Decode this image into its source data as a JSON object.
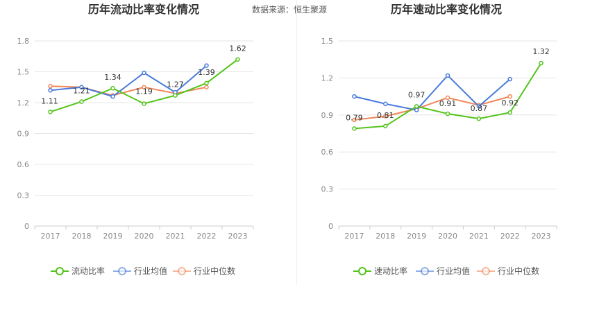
{
  "source_text": "数据来源：恒生聚源",
  "colors": {
    "main": "#52c41a",
    "avg": "#4a7bdc",
    "median": "#f0885a",
    "grid": "#e6e6e6",
    "axis": "#cccccc"
  },
  "chart_data": [
    {
      "type": "line",
      "title": "历年流动比率变化情况",
      "categories": [
        "2017",
        "2018",
        "2019",
        "2020",
        "2021",
        "2022",
        "2023"
      ],
      "ylim": [
        0,
        1.8
      ],
      "yticks": [
        "0",
        "0.3",
        "0.6",
        "0.9",
        "1.2",
        "1.5",
        "1.8"
      ],
      "grid": true,
      "legend_position": "bottom",
      "series": [
        {
          "name": "流动比率",
          "values": [
            1.11,
            1.21,
            1.34,
            1.19,
            1.27,
            1.39,
            1.62
          ],
          "labels": [
            "1.11",
            "1.21",
            "1.34",
            "1.19",
            "1.27",
            "1.39",
            "1.62"
          ]
        },
        {
          "name": "行业均值",
          "values": [
            1.32,
            1.35,
            1.26,
            1.49,
            1.3,
            1.56,
            null
          ]
        },
        {
          "name": "行业中位数",
          "values": [
            1.36,
            1.35,
            1.27,
            1.35,
            1.29,
            1.35,
            null
          ]
        }
      ]
    },
    {
      "type": "line",
      "title": "历年速动比率变化情况",
      "categories": [
        "2017",
        "2018",
        "2019",
        "2020",
        "2021",
        "2022",
        "2023"
      ],
      "ylim": [
        0,
        1.5
      ],
      "yticks": [
        "0",
        "0.3",
        "0.6",
        "0.9",
        "1.2",
        "1.5"
      ],
      "grid": true,
      "legend_position": "bottom",
      "series": [
        {
          "name": "速动比率",
          "values": [
            0.79,
            0.81,
            0.97,
            0.91,
            0.87,
            0.92,
            1.32
          ],
          "labels": [
            "0.79",
            "0.81",
            "0.97",
            "0.91",
            "0.87",
            "0.92",
            "1.32"
          ]
        },
        {
          "name": "行业均值",
          "values": [
            1.05,
            0.99,
            0.94,
            1.22,
            0.97,
            1.19,
            null
          ]
        },
        {
          "name": "行业中位数",
          "values": [
            0.86,
            0.89,
            0.95,
            1.04,
            0.98,
            1.05,
            null
          ]
        }
      ]
    }
  ]
}
